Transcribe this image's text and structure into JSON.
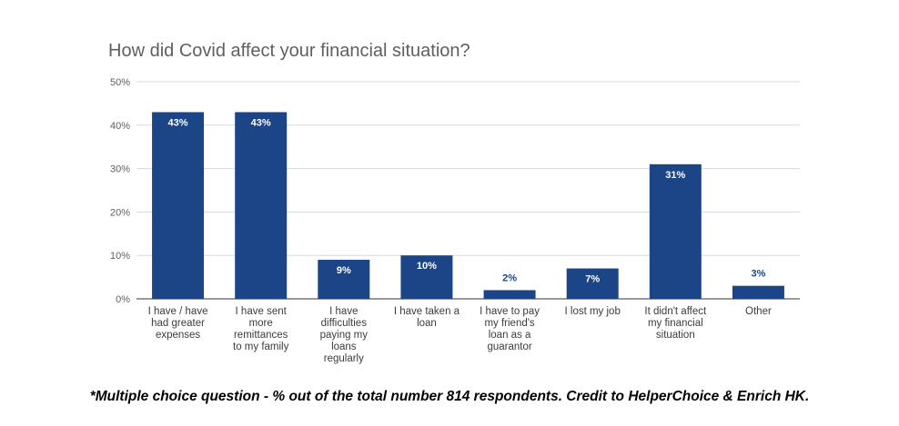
{
  "chart_data": {
    "type": "bar",
    "title": "How did Covid affect your financial situation?",
    "categories": [
      "I have / have had greater expenses",
      "I have sent more remittances to my family",
      "I have difficulties paying my loans regularly",
      "I have taken a loan",
      "I have to pay my friend's loan as a guarantor",
      "I lost my job",
      "It didn't affect my financial situation",
      "Other"
    ],
    "category_lines": [
      [
        "I have / have",
        "had greater",
        "expenses"
      ],
      [
        "I have sent",
        "more",
        "remittances",
        "to my family"
      ],
      [
        "I have",
        "difficulties",
        "paying my",
        "loans",
        "regularly"
      ],
      [
        "I have taken a",
        "loan"
      ],
      [
        "I have to pay",
        "my friend's",
        "loan as a",
        "guarantor"
      ],
      [
        "I lost my job"
      ],
      [
        "It didn't affect",
        "my financial",
        "situation"
      ],
      [
        "Other"
      ]
    ],
    "values": [
      43,
      43,
      9,
      10,
      2,
      7,
      31,
      3
    ],
    "data_labels": [
      "43%",
      "43%",
      "9%",
      "10%",
      "2%",
      "7%",
      "31%",
      "3%"
    ],
    "y_ticks": [
      "0%",
      "10%",
      "20%",
      "30%",
      "40%",
      "50%"
    ],
    "ylim": [
      0,
      50
    ],
    "xlabel": "",
    "ylabel": "",
    "grid": true,
    "legend": "none",
    "bar_color": "#1c4587",
    "label_inside_color": "#ffffff",
    "label_outside_color": "#1c4587"
  },
  "footnote": "*Multiple choice question - % out of the total number 814 respondents. Credit to HelperChoice & Enrich HK."
}
